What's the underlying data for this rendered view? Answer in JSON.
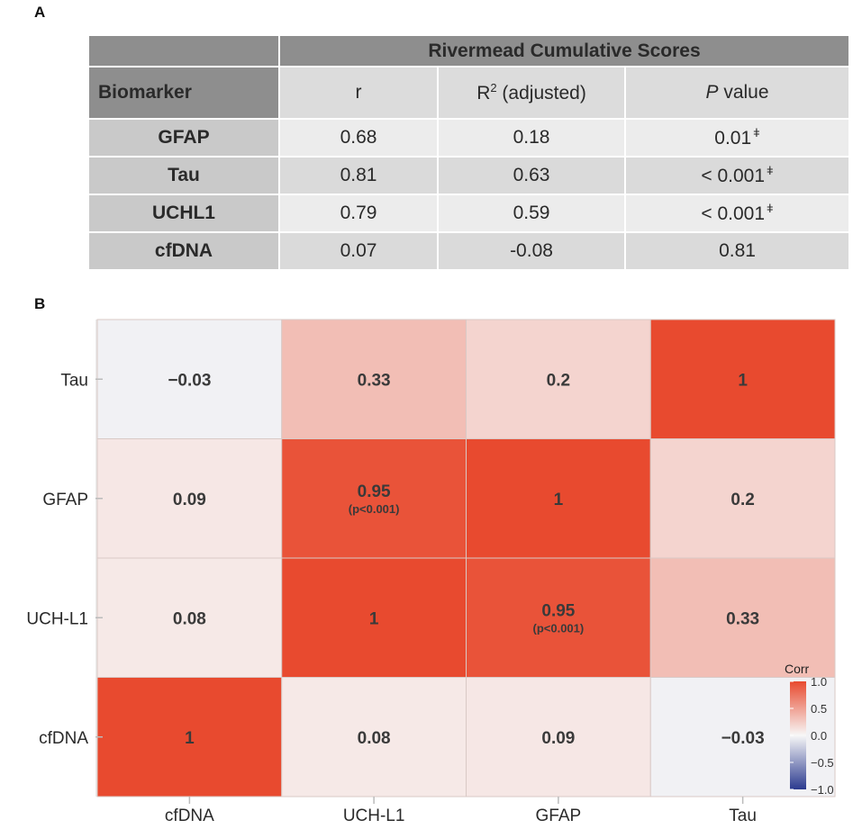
{
  "panel_a_label": "A",
  "panel_b_label": "B",
  "table": {
    "group_title": "Rivermead Cumulative Scores",
    "headers": {
      "biomarker": "Biomarker",
      "r": "r",
      "r2_base": "R",
      "r2_sup": "2",
      "r2_rest": " (adjusted)",
      "p_italic": "P",
      "p_rest": " value"
    },
    "dagger": "ǂ",
    "rows": [
      {
        "biomarker": "GFAP",
        "r": "0.68",
        "r2": "0.18",
        "p": "0.01",
        "dagger": true
      },
      {
        "biomarker": "Tau",
        "r": "0.81",
        "r2": "0.63",
        "p": "< 0.001",
        "dagger": true
      },
      {
        "biomarker": "UCHL1",
        "r": "0.79",
        "r2": "0.59",
        "p": "< 0.001",
        "dagger": true
      },
      {
        "biomarker": "cfDNA",
        "r": "0.07",
        "r2": "-0.08",
        "p": "0.81",
        "dagger": false
      }
    ]
  },
  "chart_data": {
    "type": "heatmap",
    "x_labels": [
      "cfDNA",
      "UCH-L1",
      "GFAP",
      "Tau"
    ],
    "y_labels": [
      "Tau",
      "GFAP",
      "UCH-L1",
      "cfDNA"
    ],
    "values": [
      [
        -0.03,
        0.33,
        0.2,
        1
      ],
      [
        0.09,
        0.95,
        1,
        0.2
      ],
      [
        0.08,
        1,
        0.95,
        0.33
      ],
      [
        1,
        0.08,
        0.09,
        -0.03
      ]
    ],
    "labels": [
      [
        "−0.03",
        "0.33",
        "0.2",
        "1"
      ],
      [
        "0.09",
        "0.95",
        "1",
        "0.2"
      ],
      [
        "0.08",
        "1",
        "0.95",
        "0.33"
      ],
      [
        "1",
        "0.08",
        "0.09",
        "−0.03"
      ]
    ],
    "sublabels": [
      [
        "",
        "",
        "",
        ""
      ],
      [
        "",
        "(p<0.001)",
        "",
        ""
      ],
      [
        "",
        "",
        "(p<0.001)",
        ""
      ],
      [
        "",
        "",
        "",
        ""
      ]
    ],
    "legend": {
      "title": "Corr",
      "range": [
        -1,
        1
      ],
      "ticks": [
        1.0,
        0.5,
        0.0,
        -0.5,
        -1.0
      ],
      "tick_labels": [
        "1.0",
        "0.5",
        "0.0",
        "−0.5",
        "−1.0"
      ],
      "position": "right"
    },
    "colors": {
      "high": "#e84a2f",
      "mid": "#f7f7f7",
      "low": "#2b3a8f"
    }
  }
}
